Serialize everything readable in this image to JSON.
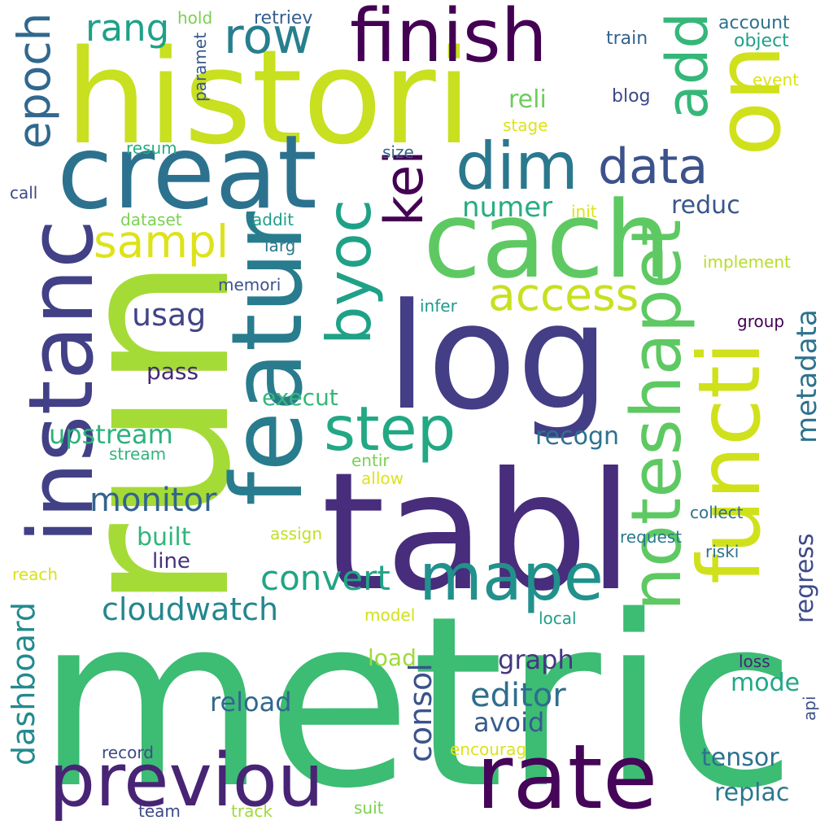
{
  "words": [
    {
      "text": "metric",
      "color": "#3dbc74"
    },
    {
      "text": "run",
      "color": "#a5db36"
    },
    {
      "text": "histori",
      "color": "#c8e020"
    },
    {
      "text": "tabl",
      "color": "#472d7b"
    },
    {
      "text": "log",
      "color": "#433e85"
    },
    {
      "text": "cach",
      "color": "#5ec962"
    },
    {
      "text": "creat",
      "color": "#2c728e"
    },
    {
      "text": "instanc",
      "color": "#424086"
    },
    {
      "text": "functi",
      "color": "#d0e11c"
    },
    {
      "text": "on",
      "color": "#d0e11c"
    },
    {
      "text": "featur",
      "color": "#287c8e"
    },
    {
      "text": "finish",
      "color": "#440154"
    },
    {
      "text": "previou",
      "color": "#482475"
    },
    {
      "text": "rate",
      "color": "#450559"
    },
    {
      "text": "mape",
      "color": "#21918c"
    },
    {
      "text": "noteshapet",
      "color": "#5ec962"
    },
    {
      "text": "byoc",
      "color": "#1fa187"
    },
    {
      "text": "dim",
      "color": "#2a788e"
    },
    {
      "text": "add",
      "color": "#35b779"
    },
    {
      "text": "row",
      "color": "#277f8e"
    },
    {
      "text": "step",
      "color": "#22a884"
    },
    {
      "text": "kei",
      "color": "#440154"
    },
    {
      "text": "epoch",
      "color": "#31688e"
    },
    {
      "text": "data",
      "color": "#3b528b"
    },
    {
      "text": "sampl",
      "color": "#dde318"
    },
    {
      "text": "access",
      "color": "#c8e020"
    },
    {
      "text": "rang",
      "color": "#1fa187"
    },
    {
      "text": "monitor",
      "color": "#33638d"
    },
    {
      "text": "cloudwatch",
      "color": "#24878e"
    },
    {
      "text": "convert",
      "color": "#21a585"
    },
    {
      "text": "editor",
      "color": "#2e6e8e"
    },
    {
      "text": "consol",
      "color": "#3b528b"
    },
    {
      "text": "dashboard",
      "color": "#238a8d"
    },
    {
      "text": "metadata",
      "color": "#2c728e"
    },
    {
      "text": "regress",
      "color": "#3e4989"
    },
    {
      "text": "usag",
      "color": "#414487"
    },
    {
      "text": "numer",
      "color": "#27ad81"
    },
    {
      "text": "upstream",
      "color": "#2db27d"
    },
    {
      "text": "execut",
      "color": "#35b779"
    },
    {
      "text": "recogn",
      "color": "#2c728e"
    },
    {
      "text": "reli",
      "color": "#6ccd5a"
    },
    {
      "text": "reduc",
      "color": "#39568c"
    },
    {
      "text": "pass",
      "color": "#482878"
    },
    {
      "text": "built",
      "color": "#31b57b"
    },
    {
      "text": "line",
      "color": "#46327e"
    },
    {
      "text": "graph",
      "color": "#453781"
    },
    {
      "text": "reload",
      "color": "#31688e"
    },
    {
      "text": "load",
      "color": "#a0da39"
    },
    {
      "text": "mode",
      "color": "#22a884"
    },
    {
      "text": "avoid",
      "color": "#365c8d"
    },
    {
      "text": "tensor",
      "color": "#2c718e"
    },
    {
      "text": "replac",
      "color": "#2a788e"
    },
    {
      "text": "retriev",
      "color": "#355f8d"
    },
    {
      "text": "account",
      "color": "#2c728e"
    },
    {
      "text": "object",
      "color": "#1fa187"
    },
    {
      "text": "train",
      "color": "#33638d"
    },
    {
      "text": "hold",
      "color": "#7ad151"
    },
    {
      "text": "paramet",
      "color": "#38588c"
    },
    {
      "text": "event",
      "color": "#dde318"
    },
    {
      "text": "blog",
      "color": "#3e4989"
    },
    {
      "text": "stage",
      "color": "#dde318"
    },
    {
      "text": "resum",
      "color": "#27ad81"
    },
    {
      "text": "size",
      "color": "#33638d"
    },
    {
      "text": "call",
      "color": "#3e4989"
    },
    {
      "text": "dataset",
      "color": "#7ad151"
    },
    {
      "text": "addit",
      "color": "#1f9e89"
    },
    {
      "text": "init",
      "color": "#dde318"
    },
    {
      "text": "larg",
      "color": "#2a788e"
    },
    {
      "text": "implement",
      "color": "#b5de2b"
    },
    {
      "text": "memori",
      "color": "#3b528b"
    },
    {
      "text": "infer",
      "color": "#1f9a8a"
    },
    {
      "text": "group",
      "color": "#440154"
    },
    {
      "text": "stream",
      "color": "#31b57b"
    },
    {
      "text": "entir",
      "color": "#7ad151"
    },
    {
      "text": "allow",
      "color": "#dde318"
    },
    {
      "text": "collect",
      "color": "#2c728e"
    },
    {
      "text": "assign",
      "color": "#c2df23"
    },
    {
      "text": "request",
      "color": "#2a788e"
    },
    {
      "text": "riski",
      "color": "#2c728e"
    },
    {
      "text": "reach",
      "color": "#d8e219"
    },
    {
      "text": "model",
      "color": "#d0e11c"
    },
    {
      "text": "local",
      "color": "#1f9e89"
    },
    {
      "text": "loss",
      "color": "#482475"
    },
    {
      "text": "api",
      "color": "#3b528b"
    },
    {
      "text": "record",
      "color": "#3e4a89"
    },
    {
      "text": "encourag",
      "color": "#dde318"
    },
    {
      "text": "team",
      "color": "#3e4989"
    },
    {
      "text": "track",
      "color": "#a0da39"
    },
    {
      "text": "suit",
      "color": "#7ad151"
    }
  ]
}
